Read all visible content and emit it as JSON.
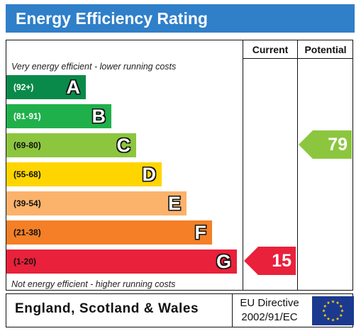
{
  "title": "Energy Efficiency Rating",
  "columns": {
    "current": "Current",
    "potential": "Potential"
  },
  "captions": {
    "top": "Very energy efficient - lower running costs",
    "bottom": "Not energy efficient - higher running costs"
  },
  "colors": {
    "title_bar": "#2f7fc9",
    "eu_flag": "#1b3a8f",
    "eu_stars": "#ffd200"
  },
  "chart_data": {
    "type": "bar",
    "bands": [
      {
        "letter": "A",
        "range": "(92+)",
        "color": "#0a8a4a",
        "range_text_color": "#ffffff"
      },
      {
        "letter": "B",
        "range": "(81-91)",
        "color": "#20b04b",
        "range_text_color": "#ffffff"
      },
      {
        "letter": "C",
        "range": "(69-80)",
        "color": "#8cc63f",
        "range_text_color": "#111111"
      },
      {
        "letter": "D",
        "range": "(55-68)",
        "color": "#ffd500",
        "range_text_color": "#111111"
      },
      {
        "letter": "E",
        "range": "(39-54)",
        "color": "#fbb26b",
        "range_text_color": "#111111"
      },
      {
        "letter": "F",
        "range": "(21-38)",
        "color": "#f47f26",
        "range_text_color": "#111111"
      },
      {
        "letter": "G",
        "range": "(1-20)",
        "color": "#e9213b",
        "range_text_color": "#111111"
      }
    ],
    "current": {
      "value": 15,
      "band": "G",
      "color": "#e9213b"
    },
    "potential": {
      "value": 79,
      "band": "C",
      "color": "#8cc63f"
    }
  },
  "footer": {
    "region": "England, Scotland & Wales",
    "directive_line1": "EU Directive",
    "directive_line2": "2002/91/EC"
  }
}
